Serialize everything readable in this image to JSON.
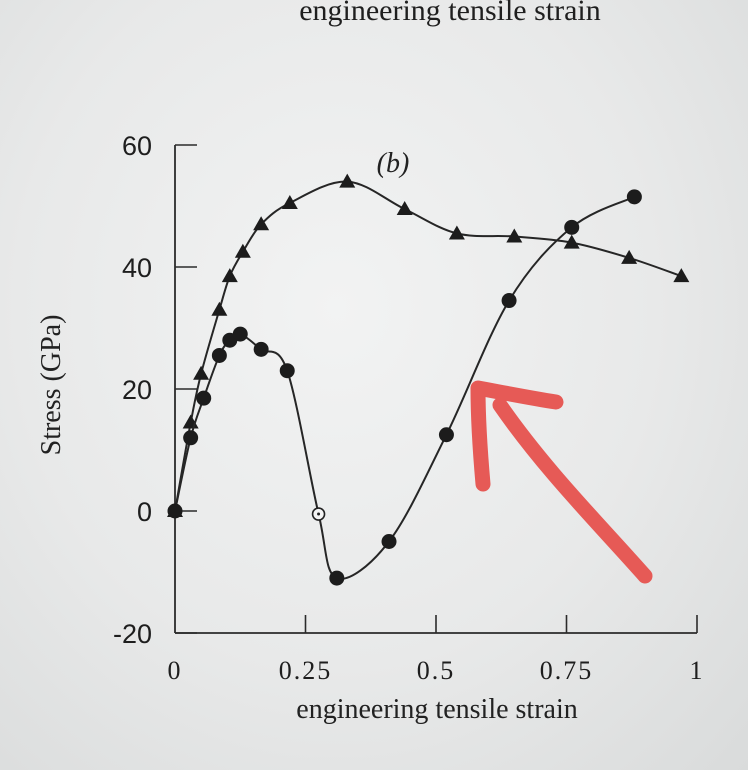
{
  "chart_data": {
    "type": "line",
    "top_caption_partial": "engineering tensile strain",
    "panel_label": "(b)",
    "xlabel": "engineering tensile strain",
    "ylabel": "Stress (GPa)",
    "xlim": [
      0,
      1
    ],
    "ylim": [
      -20,
      60
    ],
    "x_ticks": [
      0,
      0.25,
      0.5,
      0.75,
      1
    ],
    "x_tick_labels": [
      "0",
      "0.25",
      "0.5",
      "0.75",
      "1"
    ],
    "y_ticks": [
      -20,
      0,
      20,
      40,
      60
    ],
    "y_tick_labels": [
      "-20",
      "0",
      "20",
      "40",
      "60"
    ],
    "grid": false,
    "series": [
      {
        "marker": "triangle",
        "x": [
          0,
          0.03,
          0.05,
          0.085,
          0.105,
          0.13,
          0.165,
          0.22,
          0.33,
          0.44,
          0.54,
          0.65,
          0.76,
          0.87,
          0.97
        ],
        "y": [
          0,
          14.5,
          22.5,
          33,
          38.5,
          42.5,
          47,
          50.5,
          54,
          49.5,
          45.5,
          45,
          44,
          41.5,
          38.5
        ]
      },
      {
        "marker": "filled-circle",
        "x": [
          0,
          0.03,
          0.055,
          0.085,
          0.105,
          0.125,
          0.165,
          0.215,
          0.275,
          0.31,
          0.41,
          0.52,
          0.64,
          0.76,
          0.88
        ],
        "y": [
          0,
          12,
          18.5,
          25.5,
          28,
          29,
          26.5,
          23,
          -0.5,
          -11,
          -5,
          12.5,
          34.5,
          46.5,
          51.5
        ],
        "open_marker_index": 8
      }
    ],
    "annotations": [
      {
        "type": "hand-drawn-arrow",
        "color": "#e65a56",
        "points_to": "circle series near strain 0.57"
      }
    ]
  }
}
